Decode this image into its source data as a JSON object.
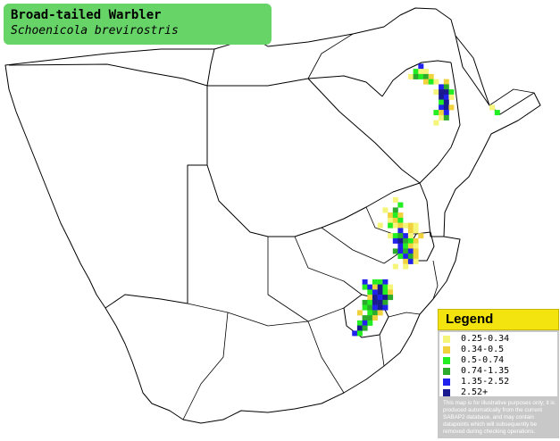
{
  "title": {
    "common_name": "Broad-tailed Warbler",
    "scientific_name": "Schoenicola brevirostris"
  },
  "legend": {
    "title": "Legend",
    "items": [
      {
        "label": "0.25-0.34",
        "color": "#f5f57a"
      },
      {
        "label": "0.34-0.5",
        "color": "#f0d23c"
      },
      {
        "label": "0.5-0.74",
        "color": "#22ee22"
      },
      {
        "label": "0.74-1.35",
        "color": "#2caa2c"
      },
      {
        "label": "1.35-2.52",
        "color": "#2222ee"
      },
      {
        "label": "2.52+",
        "color": "#1a1a90"
      }
    ],
    "disclaimer": "This map is for illustrative purposes only; it is produced automatically from the current SABAP2 database, and may contain datapoints which will subsequently be removed during checking operations."
  },
  "colors": {
    "title_box": "#66d466",
    "legend_header": "#f3e30f",
    "legend_body": "#c8c8c8",
    "border_lines": "#000000"
  },
  "map": {
    "region": "Southern Africa",
    "reporting_rate_cells": [
      {
        "lon": 31.625,
        "lat": -17.625,
        "band": 5
      },
      {
        "lon": 31.375,
        "lat": -17.875,
        "band": 3
      },
      {
        "lon": 31.625,
        "lat": -17.875,
        "band": 1
      },
      {
        "lon": 31.875,
        "lat": -17.875,
        "band": 1
      },
      {
        "lon": 31.125,
        "lat": -18.125,
        "band": 1
      },
      {
        "lon": 31.375,
        "lat": -18.125,
        "band": 4
      },
      {
        "lon": 31.625,
        "lat": -18.125,
        "band": 3
      },
      {
        "lon": 31.875,
        "lat": -18.125,
        "band": 4
      },
      {
        "lon": 32.125,
        "lat": -18.125,
        "band": 2
      },
      {
        "lon": 31.875,
        "lat": -18.375,
        "band": 2
      },
      {
        "lon": 32.125,
        "lat": -18.375,
        "band": 3
      },
      {
        "lon": 32.375,
        "lat": -18.375,
        "band": 1
      },
      {
        "lon": 32.875,
        "lat": -18.375,
        "band": 2
      },
      {
        "lon": 32.625,
        "lat": -18.625,
        "band": 5
      },
      {
        "lon": 32.875,
        "lat": -18.625,
        "band": 4
      },
      {
        "lon": 32.375,
        "lat": -18.875,
        "band": 1
      },
      {
        "lon": 32.625,
        "lat": -18.875,
        "band": 6
      },
      {
        "lon": 32.875,
        "lat": -18.875,
        "band": 6
      },
      {
        "lon": 33.125,
        "lat": -18.875,
        "band": 3
      },
      {
        "lon": 32.625,
        "lat": -19.125,
        "band": 6
      },
      {
        "lon": 32.875,
        "lat": -19.125,
        "band": 5
      },
      {
        "lon": 33.125,
        "lat": -19.125,
        "band": 1
      },
      {
        "lon": 32.625,
        "lat": -19.375,
        "band": 3
      },
      {
        "lon": 32.875,
        "lat": -19.375,
        "band": 6
      },
      {
        "lon": 32.625,
        "lat": -19.625,
        "band": 5
      },
      {
        "lon": 32.875,
        "lat": -19.625,
        "band": 6
      },
      {
        "lon": 33.125,
        "lat": -19.625,
        "band": 2
      },
      {
        "lon": 32.375,
        "lat": -19.875,
        "band": 3
      },
      {
        "lon": 32.625,
        "lat": -19.875,
        "band": 2
      },
      {
        "lon": 32.875,
        "lat": -19.875,
        "band": 5
      },
      {
        "lon": 32.625,
        "lat": -20.125,
        "band": 1
      },
      {
        "lon": 32.875,
        "lat": -20.125,
        "band": 4
      },
      {
        "lon": 32.375,
        "lat": -20.375,
        "band": 1
      },
      {
        "lon": 35.125,
        "lat": -19.625,
        "band": 1
      },
      {
        "lon": 35.375,
        "lat": -19.875,
        "band": 3
      },
      {
        "lon": 30.375,
        "lat": -24.125,
        "band": 1
      },
      {
        "lon": 30.625,
        "lat": -24.375,
        "band": 3
      },
      {
        "lon": 29.875,
        "lat": -24.625,
        "band": 1
      },
      {
        "lon": 30.375,
        "lat": -24.625,
        "band": 4
      },
      {
        "lon": 30.125,
        "lat": -24.875,
        "band": 2
      },
      {
        "lon": 30.375,
        "lat": -24.875,
        "band": 3
      },
      {
        "lon": 30.625,
        "lat": -24.875,
        "band": 2
      },
      {
        "lon": 30.125,
        "lat": -25.125,
        "band": 1
      },
      {
        "lon": 30.375,
        "lat": -25.125,
        "band": 2
      },
      {
        "lon": 30.625,
        "lat": -25.125,
        "band": 3
      },
      {
        "lon": 29.625,
        "lat": -25.375,
        "band": 1
      },
      {
        "lon": 30.125,
        "lat": -25.375,
        "band": 3
      },
      {
        "lon": 30.375,
        "lat": -25.375,
        "band": 1
      },
      {
        "lon": 30.625,
        "lat": -25.375,
        "band": 2
      },
      {
        "lon": 30.875,
        "lat": -25.375,
        "band": 1
      },
      {
        "lon": 31.125,
        "lat": -25.375,
        "band": 2
      },
      {
        "lon": 31.375,
        "lat": -25.375,
        "band": 1
      },
      {
        "lon": 30.625,
        "lat": -25.625,
        "band": 5
      },
      {
        "lon": 31.125,
        "lat": -25.625,
        "band": 2
      },
      {
        "lon": 31.375,
        "lat": -25.625,
        "band": 1
      },
      {
        "lon": 30.125,
        "lat": -25.875,
        "band": 1
      },
      {
        "lon": 30.375,
        "lat": -25.875,
        "band": 3
      },
      {
        "lon": 30.625,
        "lat": -25.875,
        "band": 4
      },
      {
        "lon": 30.875,
        "lat": -25.875,
        "band": 5
      },
      {
        "lon": 31.125,
        "lat": -25.875,
        "band": 1
      },
      {
        "lon": 31.625,
        "lat": -25.875,
        "band": 2
      },
      {
        "lon": 30.375,
        "lat": -26.125,
        "band": 5
      },
      {
        "lon": 30.625,
        "lat": -26.125,
        "band": 6
      },
      {
        "lon": 30.875,
        "lat": -26.125,
        "band": 4
      },
      {
        "lon": 31.125,
        "lat": -26.125,
        "band": 3
      },
      {
        "lon": 31.375,
        "lat": -26.125,
        "band": 2
      },
      {
        "lon": 30.625,
        "lat": -26.375,
        "band": 5
      },
      {
        "lon": 30.875,
        "lat": -26.375,
        "band": 3
      },
      {
        "lon": 31.125,
        "lat": -26.375,
        "band": 2
      },
      {
        "lon": 31.375,
        "lat": -26.375,
        "band": 1
      },
      {
        "lon": 30.375,
        "lat": -26.625,
        "band": 4
      },
      {
        "lon": 30.625,
        "lat": -26.625,
        "band": 5
      },
      {
        "lon": 30.875,
        "lat": -26.625,
        "band": 4
      },
      {
        "lon": 31.125,
        "lat": -26.625,
        "band": 5
      },
      {
        "lon": 31.375,
        "lat": -26.625,
        "band": 2
      },
      {
        "lon": 30.625,
        "lat": -26.875,
        "band": 3
      },
      {
        "lon": 30.875,
        "lat": -26.875,
        "band": 5
      },
      {
        "lon": 31.125,
        "lat": -26.875,
        "band": 4
      },
      {
        "lon": 31.375,
        "lat": -26.875,
        "band": 2
      },
      {
        "lon": 30.875,
        "lat": -27.125,
        "band": 2
      },
      {
        "lon": 31.125,
        "lat": -27.125,
        "band": 5
      },
      {
        "lon": 31.375,
        "lat": -27.125,
        "band": 1
      },
      {
        "lon": 30.375,
        "lat": -27.375,
        "band": 1
      },
      {
        "lon": 30.875,
        "lat": -27.375,
        "band": 1
      },
      {
        "lon": 28.875,
        "lat": -28.125,
        "band": 5
      },
      {
        "lon": 29.375,
        "lat": -28.125,
        "band": 3
      },
      {
        "lon": 29.625,
        "lat": -28.125,
        "band": 3
      },
      {
        "lon": 29.875,
        "lat": -28.125,
        "band": 5
      },
      {
        "lon": 28.875,
        "lat": -28.375,
        "band": 3
      },
      {
        "lon": 29.125,
        "lat": -28.375,
        "band": 5
      },
      {
        "lon": 29.375,
        "lat": -28.375,
        "band": 2
      },
      {
        "lon": 29.625,
        "lat": -28.375,
        "band": 6
      },
      {
        "lon": 29.875,
        "lat": -28.375,
        "band": 3
      },
      {
        "lon": 30.125,
        "lat": -28.375,
        "band": 1
      },
      {
        "lon": 29.125,
        "lat": -28.625,
        "band": 3
      },
      {
        "lon": 29.375,
        "lat": -28.625,
        "band": 5
      },
      {
        "lon": 29.625,
        "lat": -28.625,
        "band": 6
      },
      {
        "lon": 29.875,
        "lat": -28.625,
        "band": 3
      },
      {
        "lon": 30.125,
        "lat": -28.625,
        "band": 2
      },
      {
        "lon": 29.125,
        "lat": -28.875,
        "band": 2
      },
      {
        "lon": 29.375,
        "lat": -28.875,
        "band": 6
      },
      {
        "lon": 29.625,
        "lat": -28.875,
        "band": 5
      },
      {
        "lon": 29.875,
        "lat": -28.875,
        "band": 6
      },
      {
        "lon": 30.125,
        "lat": -28.875,
        "band": 4
      },
      {
        "lon": 28.875,
        "lat": -29.125,
        "band": 4
      },
      {
        "lon": 29.125,
        "lat": -29.125,
        "band": 3
      },
      {
        "lon": 29.375,
        "lat": -29.125,
        "band": 6
      },
      {
        "lon": 29.625,
        "lat": -29.125,
        "band": 6
      },
      {
        "lon": 29.875,
        "lat": -29.125,
        "band": 4
      },
      {
        "lon": 28.875,
        "lat": -29.375,
        "band": 3
      },
      {
        "lon": 29.125,
        "lat": -29.375,
        "band": 4
      },
      {
        "lon": 29.375,
        "lat": -29.375,
        "band": 5
      },
      {
        "lon": 29.625,
        "lat": -29.375,
        "band": 6
      },
      {
        "lon": 29.875,
        "lat": -29.375,
        "band": 5
      },
      {
        "lon": 28.625,
        "lat": -29.625,
        "band": 2
      },
      {
        "lon": 29.125,
        "lat": -29.625,
        "band": 3
      },
      {
        "lon": 29.375,
        "lat": -29.625,
        "band": 4
      },
      {
        "lon": 29.625,
        "lat": -29.625,
        "band": 2
      },
      {
        "lon": 28.875,
        "lat": -29.875,
        "band": 4
      },
      {
        "lon": 29.125,
        "lat": -29.875,
        "band": 4
      },
      {
        "lon": 29.375,
        "lat": -29.875,
        "band": 2
      },
      {
        "lon": 28.625,
        "lat": -30.125,
        "band": 3
      },
      {
        "lon": 28.875,
        "lat": -30.125,
        "band": 5
      },
      {
        "lon": 29.125,
        "lat": -30.125,
        "band": 3
      },
      {
        "lon": 28.625,
        "lat": -30.375,
        "band": 6
      },
      {
        "lon": 28.875,
        "lat": -30.375,
        "band": 4
      },
      {
        "lon": 28.375,
        "lat": -30.625,
        "band": 5
      },
      {
        "lon": 28.625,
        "lat": -30.625,
        "band": 3
      }
    ]
  }
}
